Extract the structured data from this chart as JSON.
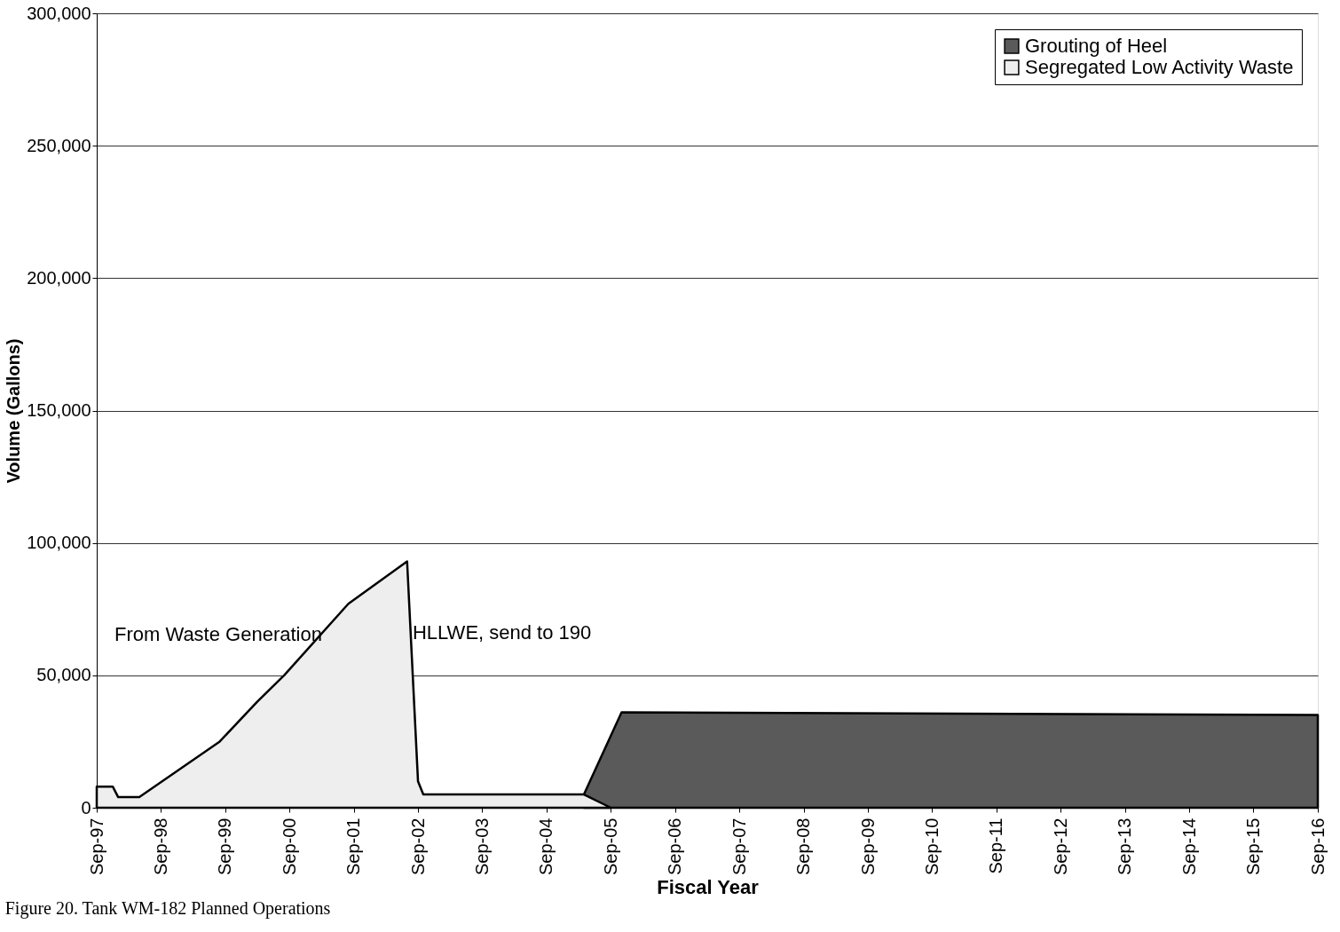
{
  "chart_data": {
    "type": "area",
    "xlabel": "Fiscal Year",
    "ylabel": "Volume (Gallons)",
    "series": [
      {
        "name": "Grouting of Heel",
        "color": "#5a5a5a",
        "x": [
          "2005-04",
          "2005-11",
          "2016-09"
        ],
        "values": [
          5000,
          36000,
          35000
        ]
      },
      {
        "name": "Segregated Low Activity Waste",
        "color": "#eeeeee",
        "x": [
          "1997-09",
          "1997-12",
          "1998-01",
          "1998-05",
          "1999-08",
          "2000-03",
          "2000-08",
          "2001-08",
          "2002-07",
          "2002-09",
          "2002-10",
          "2005-04",
          "2005-09"
        ],
        "values": [
          8000,
          8000,
          4000,
          4000,
          25000,
          40000,
          50000,
          77000,
          93000,
          10000,
          5000,
          5000,
          0
        ]
      }
    ],
    "ylim": [
      0,
      300000
    ],
    "yticks": [
      0,
      {
        "value": 50000,
        "label": "50,000"
      },
      {
        "value": 100000,
        "label": "100,000"
      },
      {
        "value": 150000,
        "label": "150,000"
      },
      {
        "value": 200000,
        "label": "200,000"
      },
      {
        "value": 250000,
        "label": "250,000"
      },
      {
        "value": 300000,
        "label": "300,000"
      }
    ],
    "xlim": [
      "1997-09",
      "2016-09"
    ],
    "xticks": [
      {
        "value": "1997-09",
        "label": "Sep-97"
      },
      {
        "value": "1998-09",
        "label": "Sep-98"
      },
      {
        "value": "1999-09",
        "label": "Sep-99"
      },
      {
        "value": "2000-09",
        "label": "Sep-00"
      },
      {
        "value": "2001-09",
        "label": "Sep-01"
      },
      {
        "value": "2002-09",
        "label": "Sep-02"
      },
      {
        "value": "2003-09",
        "label": "Sep-03"
      },
      {
        "value": "2004-09",
        "label": "Sep-04"
      },
      {
        "value": "2005-09",
        "label": "Sep-05"
      },
      {
        "value": "2006-09",
        "label": "Sep-06"
      },
      {
        "value": "2007-09",
        "label": "Sep-07"
      },
      {
        "value": "2008-09",
        "label": "Sep-08"
      },
      {
        "value": "2009-09",
        "label": "Sep-09"
      },
      {
        "value": "2010-09",
        "label": "Sep-10"
      },
      {
        "value": "2011-09",
        "label": "Sep-11"
      },
      {
        "value": "2012-09",
        "label": "Sep-12"
      },
      {
        "value": "2013-09",
        "label": "Sep-13"
      },
      {
        "value": "2014-09",
        "label": "Sep-14"
      },
      {
        "value": "2015-09",
        "label": "Sep-15"
      },
      {
        "value": "2016-09",
        "label": "Sep-16"
      }
    ],
    "grid": "y",
    "legend": "top right",
    "annotations": [
      "From Waste Generation",
      {
        "text": "HLLWE, send to 190",
        "x": "2002-08",
        "y": 66000
      },
      "Figure 20. Tank WM-182 Planned Operations"
    ]
  }
}
